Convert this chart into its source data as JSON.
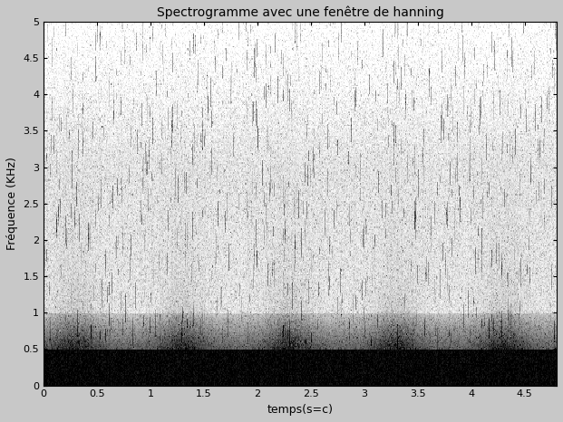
{
  "title": "Spectrogramme avec une fenêtre de hanning",
  "xlabel": "temps(s=c)",
  "ylabel": "Fréquence (KHz)",
  "xlim": [
    0,
    4.8
  ],
  "ylim": [
    0,
    5
  ],
  "xticks": [
    0,
    0.5,
    1,
    1.5,
    2,
    2.5,
    3,
    3.5,
    4,
    4.5
  ],
  "yticks": [
    0,
    0.5,
    1,
    1.5,
    2,
    2.5,
    3,
    3.5,
    4,
    4.5,
    5
  ],
  "background_color": "#c8c8c8",
  "title_fontsize": 10,
  "label_fontsize": 9,
  "duration": 4.8,
  "n_times": 600,
  "n_freqs": 300,
  "seed": 12345
}
